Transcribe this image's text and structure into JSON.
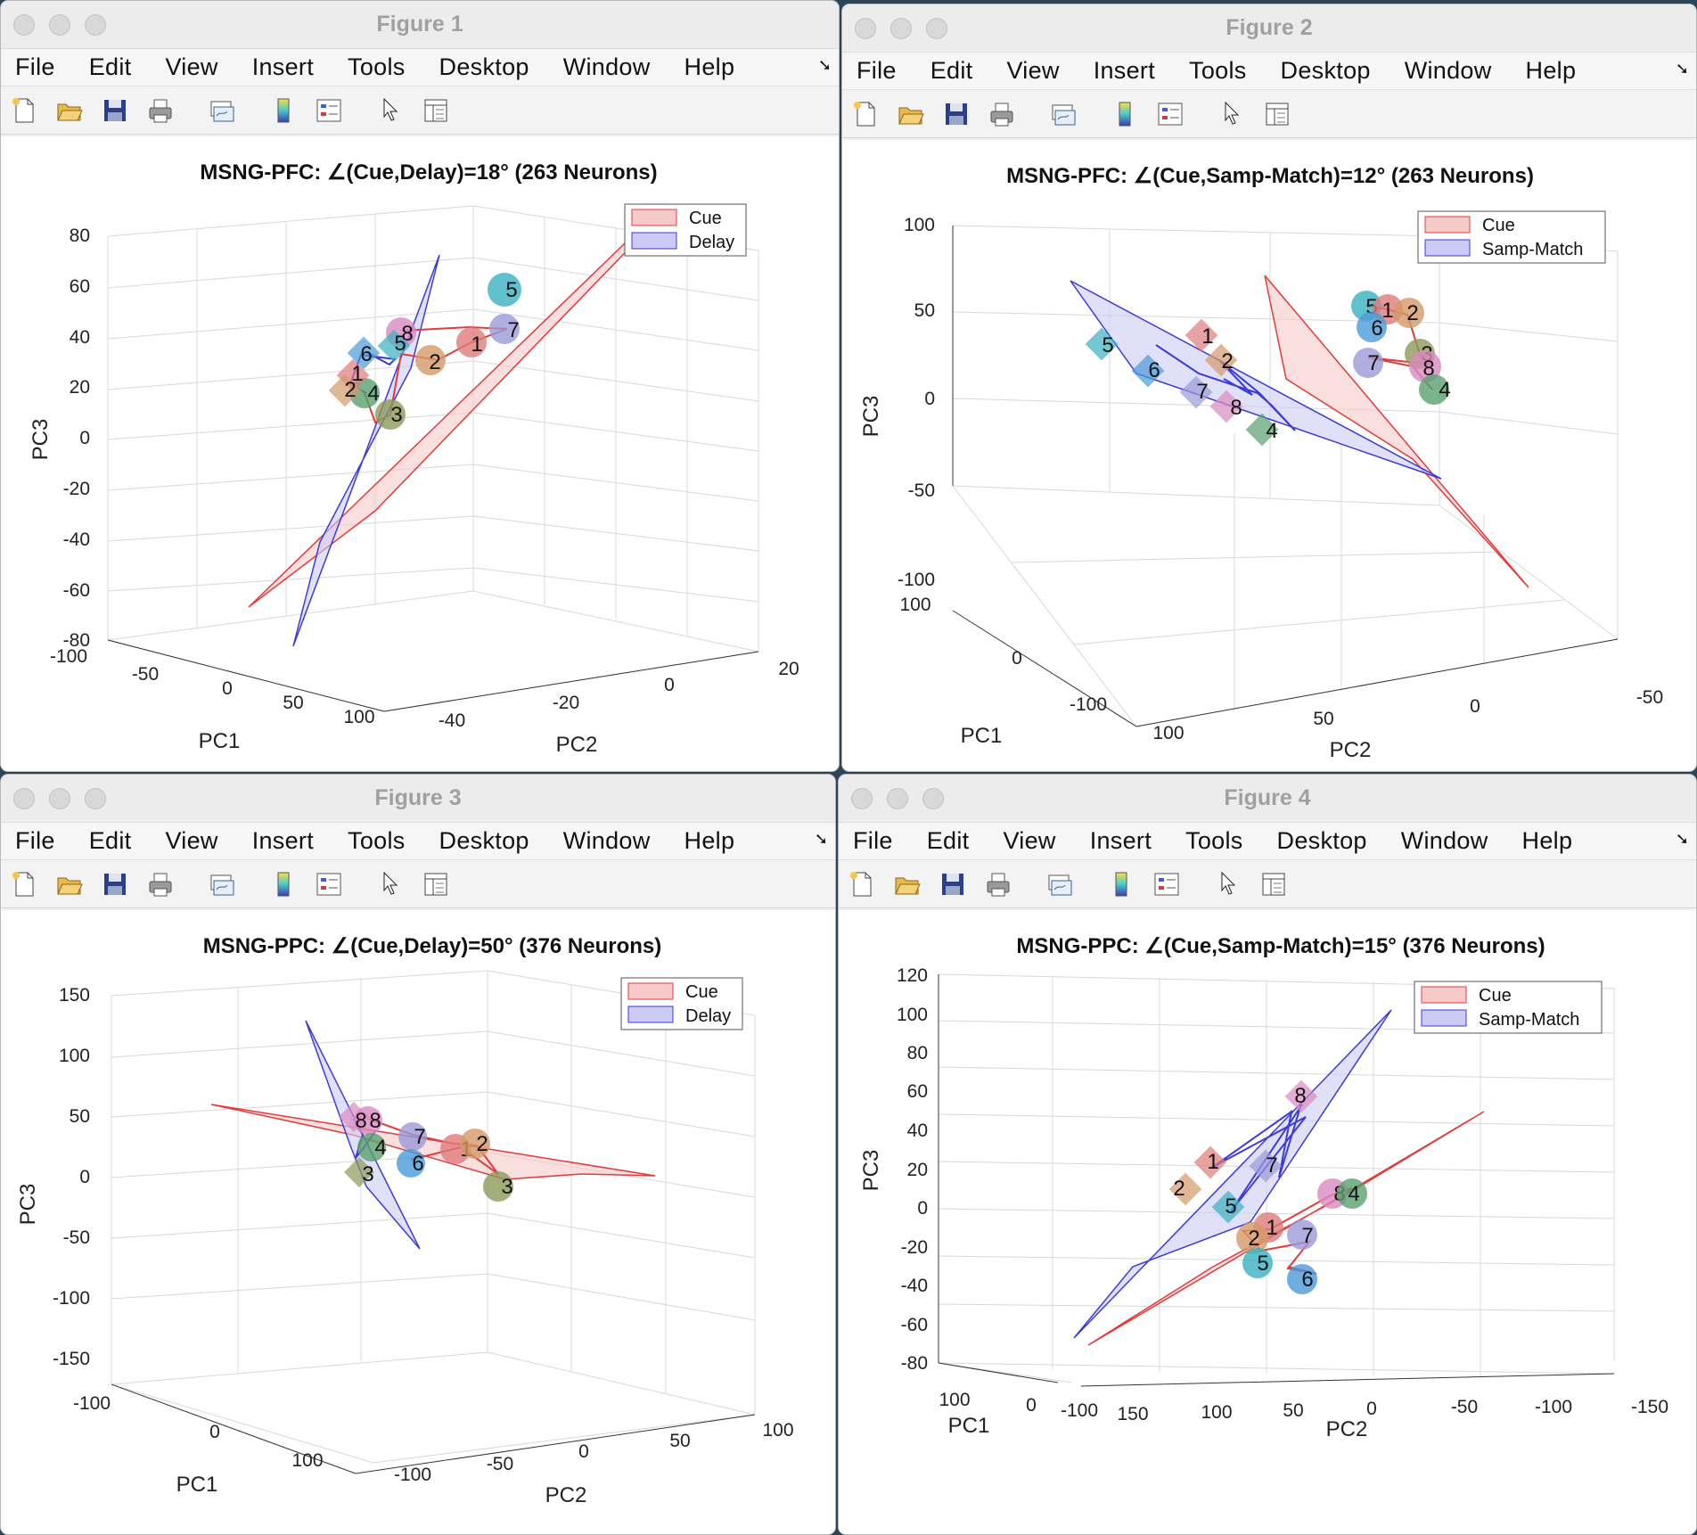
{
  "menu": [
    "File",
    "Edit",
    "View",
    "Insert",
    "Tools",
    "Desktop",
    "Window",
    "Help"
  ],
  "toolbar_icons": [
    "new-figure-icon",
    "open-icon",
    "save-icon",
    "print-icon",
    "link-plot-icon",
    "colorbar-icon",
    "legend-icon",
    "pointer-icon",
    "property-inspector-icon"
  ],
  "colors": {
    "cue": "#e23b3b",
    "cue_fill": "#f7caca",
    "delay": "#3b3bd9",
    "delay_fill": "#cbcbf5"
  },
  "figures": [
    {
      "window_title": "Figure 1",
      "plot_title": "MSNG-PFC: ∠(Cue,Delay)=18° (263 Neurons)",
      "legend": [
        "Cue",
        "Delay"
      ],
      "axes": {
        "xlabel": "PC1",
        "ylabel": "PC2",
        "zlabel": "PC3",
        "zticks": [
          "80",
          "60",
          "40",
          "20",
          "0",
          "-20",
          "-40",
          "-60",
          "-80"
        ],
        "xticks": [
          "-100",
          "-50",
          "0",
          "50",
          "100"
        ],
        "yticks": [
          "-40",
          "-20",
          "0",
          "20"
        ]
      },
      "chart_data": {
        "type": "scatter",
        "cue_markers": [
          {
            "label": "1",
            "color": "#e07b7b"
          },
          {
            "label": "2",
            "color": "#d49a68"
          },
          {
            "label": "3",
            "color": "#8c9a5a"
          },
          {
            "label": "4",
            "color": "#5aa06e"
          },
          {
            "label": "5",
            "color": "#3ab0c0"
          },
          {
            "label": "7",
            "color": "#9a9ad8"
          },
          {
            "label": "8",
            "color": "#d88ac0"
          }
        ],
        "delay_markers": [
          {
            "label": "1",
            "color": "#e07b7b"
          },
          {
            "label": "2",
            "color": "#d49a68"
          },
          {
            "label": "5",
            "color": "#3ab0c0"
          },
          {
            "label": "6",
            "color": "#4a9ad8"
          }
        ]
      }
    },
    {
      "window_title": "Figure 2",
      "plot_title": "MSNG-PFC: ∠(Cue,Samp-Match)=12° (263 Neurons)",
      "legend": [
        "Cue",
        "Samp-Match"
      ],
      "axes": {
        "xlabel": "PC1",
        "ylabel": "PC2",
        "zlabel": "PC3",
        "zticks": [
          "100",
          "50",
          "0",
          "-50",
          "-100"
        ],
        "xticks": [
          "100",
          "0",
          "-100"
        ],
        "yticks": [
          "100",
          "50",
          "0",
          "-50"
        ]
      },
      "chart_data": {
        "type": "scatter",
        "cue_markers": [
          {
            "label": "5",
            "color": "#3ab0c0"
          },
          {
            "label": "1",
            "color": "#e07b7b"
          },
          {
            "label": "2",
            "color": "#d49a68"
          },
          {
            "label": "6",
            "color": "#4a9ad8"
          },
          {
            "label": "3",
            "color": "#8c9a5a"
          },
          {
            "label": "7",
            "color": "#9a9ad8"
          },
          {
            "label": "8",
            "color": "#d88ac0"
          },
          {
            "label": "4",
            "color": "#5aa06e"
          }
        ],
        "samp_match_markers": [
          {
            "label": "1",
            "color": "#e07b7b"
          },
          {
            "label": "2",
            "color": "#d49a68"
          },
          {
            "label": "5",
            "color": "#3ab0c0"
          },
          {
            "label": "6",
            "color": "#4a9ad8"
          },
          {
            "label": "7",
            "color": "#9a9ad8"
          },
          {
            "label": "8",
            "color": "#d88ac0"
          },
          {
            "label": "4",
            "color": "#5aa06e"
          }
        ]
      }
    },
    {
      "window_title": "Figure 3",
      "plot_title": "MSNG-PPC: ∠(Cue,Delay)=50° (376 Neurons)",
      "legend": [
        "Cue",
        "Delay"
      ],
      "axes": {
        "xlabel": "PC1",
        "ylabel": "PC2",
        "zlabel": "PC3",
        "zticks": [
          "150",
          "100",
          "50",
          "0",
          "-50",
          "-100",
          "-150"
        ],
        "xticks": [
          "-100",
          "0",
          "100"
        ],
        "yticks": [
          "-100",
          "-50",
          "0",
          "50",
          "100"
        ]
      },
      "chart_data": {
        "type": "scatter",
        "cue_markers": [
          {
            "label": "7",
            "color": "#9a9ad8"
          },
          {
            "label": "1",
            "color": "#e07b7b"
          },
          {
            "label": "2",
            "color": "#d49a68"
          },
          {
            "label": "6",
            "color": "#4a9ad8"
          },
          {
            "label": "3",
            "color": "#8c9a5a"
          },
          {
            "label": "8",
            "color": "#d88ac0"
          },
          {
            "label": "4",
            "color": "#5aa06e"
          }
        ],
        "delay_markers": [
          {
            "label": "8",
            "color": "#d88ac0"
          },
          {
            "label": "3",
            "color": "#8c9a5a"
          }
        ]
      }
    },
    {
      "window_title": "Figure 4",
      "plot_title": "MSNG-PPC: ∠(Cue,Samp-Match)=15° (376 Neurons)",
      "legend": [
        "Cue",
        "Samp-Match"
      ],
      "axes": {
        "xlabel": "PC1",
        "ylabel": "PC2",
        "zlabel": "PC3",
        "zticks": [
          "120",
          "100",
          "80",
          "60",
          "40",
          "20",
          "0",
          "-20",
          "-40",
          "-60",
          "-80"
        ],
        "xticks": [
          "100",
          "0",
          "-100"
        ],
        "yticks": [
          "150",
          "100",
          "50",
          "0",
          "-50",
          "-100",
          "-150"
        ]
      },
      "chart_data": {
        "type": "scatter",
        "cue_markers": [
          {
            "label": "8",
            "color": "#d88ac0"
          },
          {
            "label": "4",
            "color": "#5aa06e"
          },
          {
            "label": "1",
            "color": "#e07b7b"
          },
          {
            "label": "2",
            "color": "#d49a68"
          },
          {
            "label": "7",
            "color": "#9a9ad8"
          },
          {
            "label": "5",
            "color": "#3ab0c0"
          },
          {
            "label": "6",
            "color": "#4a9ad8"
          }
        ],
        "samp_match_markers": [
          {
            "label": "8",
            "color": "#d88ac0"
          },
          {
            "label": "1",
            "color": "#e07b7b"
          },
          {
            "label": "2",
            "color": "#d49a68"
          },
          {
            "label": "7",
            "color": "#9a9ad8"
          },
          {
            "label": "5",
            "color": "#3ab0c0"
          }
        ]
      }
    }
  ]
}
